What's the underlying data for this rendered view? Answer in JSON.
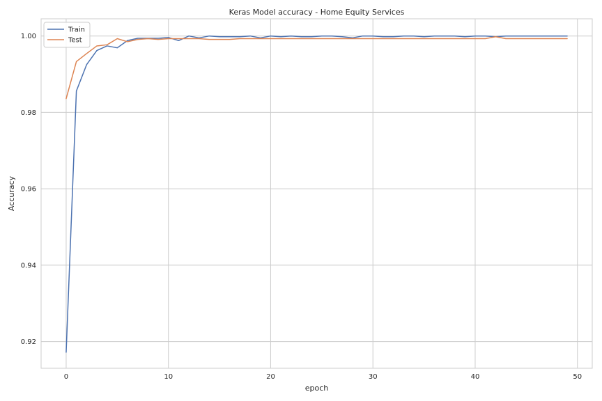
{
  "chart_data": {
    "type": "line",
    "title": "Keras Model accuracy - Home Equity Services",
    "xlabel": "epoch",
    "ylabel": "Accuracy",
    "xlim": [
      -2.45,
      51.45
    ],
    "ylim": [
      0.913,
      1.0045
    ],
    "xticks": [
      0,
      10,
      20,
      30,
      40,
      50
    ],
    "yticks": [
      0.92,
      0.94,
      0.96,
      0.98,
      1.0
    ],
    "ytick_labels": [
      "0.92",
      "0.94",
      "0.96",
      "0.98",
      "1.00"
    ],
    "grid": true,
    "legend_position": "top-left",
    "series": [
      {
        "name": "Train",
        "color": "#4c72b0",
        "x": [
          0,
          1,
          2,
          3,
          4,
          5,
          6,
          7,
          8,
          9,
          10,
          11,
          12,
          13,
          14,
          15,
          16,
          17,
          18,
          19,
          20,
          21,
          22,
          23,
          24,
          25,
          26,
          27,
          28,
          29,
          30,
          31,
          32,
          33,
          34,
          35,
          36,
          37,
          38,
          39,
          40,
          41,
          42,
          43,
          44,
          45,
          46,
          47,
          48,
          49
        ],
        "values": [
          0.9172,
          0.9856,
          0.9925,
          0.9962,
          0.9974,
          0.9969,
          0.9988,
          0.9994,
          0.9994,
          0.9994,
          0.9996,
          0.9988,
          1.0,
          0.9995,
          1.0,
          0.9998,
          0.9998,
          0.9998,
          1.0,
          0.9995,
          1.0,
          0.9998,
          1.0,
          0.9998,
          0.9998,
          1.0,
          1.0,
          0.9998,
          0.9995,
          1.0,
          1.0,
          0.9998,
          0.9998,
          1.0,
          1.0,
          0.9998,
          1.0,
          1.0,
          1.0,
          0.9998,
          1.0,
          1.0,
          0.9998,
          1.0,
          1.0,
          1.0,
          1.0,
          1.0,
          1.0,
          1.0
        ]
      },
      {
        "name": "Test",
        "color": "#dd8452",
        "x": [
          0,
          1,
          2,
          3,
          4,
          5,
          6,
          7,
          8,
          9,
          10,
          11,
          12,
          13,
          14,
          15,
          16,
          17,
          18,
          19,
          20,
          21,
          22,
          23,
          24,
          25,
          26,
          27,
          28,
          29,
          30,
          31,
          32,
          33,
          34,
          35,
          36,
          37,
          38,
          39,
          40,
          41,
          42,
          43,
          44,
          45,
          46,
          47,
          48,
          49
        ],
        "values": [
          0.9836,
          0.9933,
          0.9954,
          0.9974,
          0.9977,
          0.9993,
          0.9985,
          0.9991,
          0.9993,
          0.9991,
          0.9993,
          0.9993,
          0.9993,
          0.9993,
          0.9991,
          0.9991,
          0.9991,
          0.9993,
          0.9993,
          0.9993,
          0.9993,
          0.9993,
          0.9993,
          0.9993,
          0.9993,
          0.9993,
          0.9993,
          0.9993,
          0.9993,
          0.9993,
          0.9993,
          0.9993,
          0.9993,
          0.9993,
          0.9993,
          0.9993,
          0.9993,
          0.9993,
          0.9993,
          0.9993,
          0.9993,
          0.9993,
          0.9998,
          0.9993,
          0.9993,
          0.9993,
          0.9993,
          0.9993,
          0.9993,
          0.9993
        ]
      }
    ]
  },
  "style": {
    "grid_color": "#cccccc",
    "frame_color": "#cccccc",
    "background": "#ffffff"
  }
}
